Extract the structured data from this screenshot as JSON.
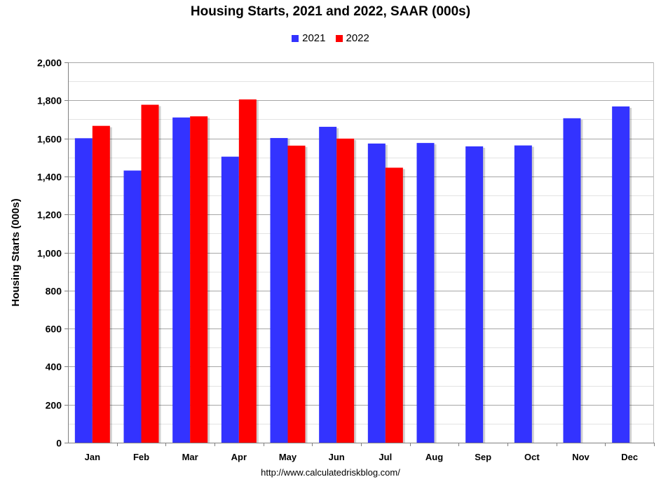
{
  "chart_data": {
    "type": "bar",
    "title": "Housing Starts,  2021 and 2022, SAAR (000s)",
    "xlabel": "",
    "ylabel": "Housing Starts (000s)",
    "ylim": [
      0,
      2000
    ],
    "yticks": [
      0,
      200,
      400,
      600,
      800,
      1000,
      1200,
      1400,
      1600,
      1800,
      2000
    ],
    "ytick_labels": [
      "0",
      "200",
      "400",
      "600",
      "800",
      "1,000",
      "1,200",
      "1,400",
      "1,600",
      "1,800",
      "2,000"
    ],
    "categories": [
      "Jan",
      "Feb",
      "Mar",
      "Apr",
      "May",
      "Jun",
      "Jul",
      "Aug",
      "Sep",
      "Oct",
      "Nov",
      "Dec"
    ],
    "series": [
      {
        "name": "2021",
        "color": "#3333ff",
        "values": [
          1601,
          1431,
          1710,
          1504,
          1602,
          1661,
          1573,
          1576,
          1558,
          1563,
          1706,
          1768
        ]
      },
      {
        "name": "2022",
        "color": "#ff0000",
        "values": [
          1666,
          1777,
          1716,
          1805,
          1562,
          1599,
          1446,
          null,
          null,
          null,
          null,
          null
        ]
      }
    ],
    "grid": true,
    "legend_position": "top-center"
  },
  "footer": {
    "source_url": "http://www.calculatedriskblog.com/"
  }
}
